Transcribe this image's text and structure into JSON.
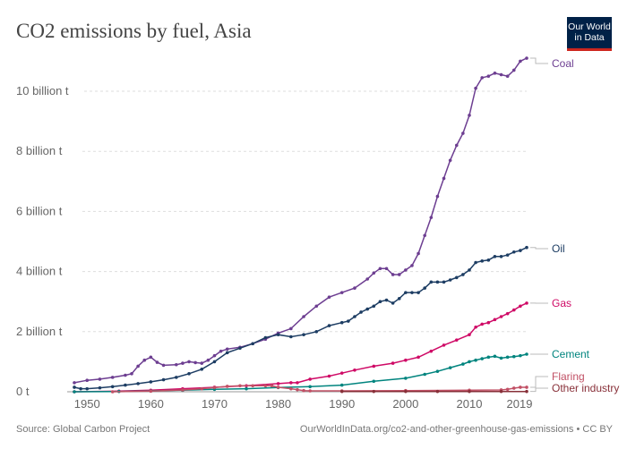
{
  "logo_text": "Our World in Data",
  "footer": {
    "source": "Source: Global Carbon Project",
    "url": "OurWorldInData.org/co2-and-other-greenhouse-gas-emissions • CC BY"
  },
  "chart_data": {
    "type": "line",
    "title": "CO2 emissions by fuel, Asia",
    "xlabel": "",
    "ylabel": "",
    "xlim": [
      1948,
      2019
    ],
    "ylim": [
      0,
      11.1
    ],
    "grid": true,
    "legend": "right (inline labels at line ends)",
    "x_ticks": [
      1950,
      1960,
      1970,
      1980,
      1990,
      2000,
      2010,
      2019
    ],
    "y_ticks": [
      {
        "value": 0,
        "label": "0 t"
      },
      {
        "value": 2,
        "label": "2 billion t"
      },
      {
        "value": 4,
        "label": "4 billion t"
      },
      {
        "value": 6,
        "label": "6 billion t"
      },
      {
        "value": 8,
        "label": "8 billion t"
      },
      {
        "value": 10,
        "label": "10 billion t"
      }
    ],
    "units": "billion t",
    "series": [
      {
        "name": "Coal",
        "color": "#6d3e91",
        "x": [
          1948,
          1950,
          1952,
          1954,
          1956,
          1957,
          1958,
          1959,
          1960,
          1961,
          1962,
          1964,
          1965,
          1966,
          1967,
          1968,
          1969,
          1970,
          1971,
          1972,
          1974,
          1976,
          1978,
          1980,
          1982,
          1984,
          1986,
          1988,
          1990,
          1992,
          1994,
          1995,
          1996,
          1997,
          1998,
          1999,
          2000,
          2001,
          2002,
          2003,
          2004,
          2005,
          2006,
          2007,
          2008,
          2009,
          2010,
          2011,
          2012,
          2013,
          2014,
          2015,
          2016,
          2017,
          2018,
          2019
        ],
        "y": [
          0.3,
          0.38,
          0.42,
          0.48,
          0.55,
          0.6,
          0.85,
          1.05,
          1.15,
          0.98,
          0.88,
          0.9,
          0.95,
          1.0,
          0.97,
          0.95,
          1.05,
          1.2,
          1.35,
          1.42,
          1.48,
          1.6,
          1.75,
          1.95,
          2.1,
          2.5,
          2.85,
          3.15,
          3.3,
          3.45,
          3.75,
          3.95,
          4.1,
          4.1,
          3.9,
          3.9,
          4.05,
          4.2,
          4.6,
          5.2,
          5.8,
          6.5,
          7.1,
          7.7,
          8.2,
          8.6,
          9.2,
          10.1,
          10.45,
          10.5,
          10.6,
          10.55,
          10.5,
          10.7,
          11.0,
          11.1
        ]
      },
      {
        "name": "Oil",
        "color": "#1d3d63",
        "x": [
          1948,
          1949,
          1950,
          1952,
          1954,
          1956,
          1958,
          1960,
          1962,
          1964,
          1966,
          1968,
          1970,
          1972,
          1974,
          1976,
          1978,
          1980,
          1982,
          1984,
          1986,
          1988,
          1990,
          1991,
          1992,
          1993,
          1994,
          1995,
          1996,
          1997,
          1998,
          1999,
          2000,
          2001,
          2002,
          2003,
          2004,
          2005,
          2006,
          2007,
          2008,
          2009,
          2010,
          2011,
          2012,
          2013,
          2014,
          2015,
          2016,
          2017,
          2018,
          2019
        ],
        "y": [
          0.15,
          0.1,
          0.1,
          0.13,
          0.17,
          0.22,
          0.27,
          0.33,
          0.4,
          0.48,
          0.6,
          0.75,
          1.0,
          1.3,
          1.45,
          1.6,
          1.8,
          1.9,
          1.83,
          1.9,
          2.0,
          2.2,
          2.3,
          2.35,
          2.5,
          2.65,
          2.75,
          2.85,
          3.0,
          3.05,
          2.95,
          3.1,
          3.3,
          3.3,
          3.3,
          3.45,
          3.65,
          3.65,
          3.65,
          3.72,
          3.8,
          3.9,
          4.05,
          4.3,
          4.35,
          4.38,
          4.5,
          4.5,
          4.55,
          4.65,
          4.7,
          4.8
        ]
      },
      {
        "name": "Gas",
        "color": "#cf0a66",
        "x": [
          1948,
          1955,
          1960,
          1965,
          1970,
          1975,
          1980,
          1982,
          1983,
          1985,
          1988,
          1990,
          1992,
          1995,
          1998,
          2000,
          2002,
          2004,
          2006,
          2008,
          2010,
          2011,
          2012,
          2013,
          2014,
          2015,
          2016,
          2017,
          2018,
          2019
        ],
        "y": [
          0.0,
          0.02,
          0.05,
          0.1,
          0.15,
          0.2,
          0.27,
          0.3,
          0.3,
          0.42,
          0.52,
          0.62,
          0.72,
          0.85,
          0.95,
          1.05,
          1.15,
          1.35,
          1.55,
          1.72,
          1.9,
          2.15,
          2.25,
          2.3,
          2.4,
          2.5,
          2.6,
          2.72,
          2.85,
          2.95
        ]
      },
      {
        "name": "Cement",
        "color": "#00847e",
        "x": [
          1948,
          1955,
          1960,
          1965,
          1970,
          1975,
          1980,
          1985,
          1990,
          1995,
          2000,
          2003,
          2005,
          2007,
          2009,
          2010,
          2011,
          2012,
          2013,
          2014,
          2015,
          2016,
          2017,
          2018,
          2019
        ],
        "y": [
          0.0,
          0.01,
          0.03,
          0.05,
          0.08,
          0.1,
          0.14,
          0.17,
          0.22,
          0.35,
          0.45,
          0.58,
          0.68,
          0.8,
          0.92,
          1.0,
          1.05,
          1.1,
          1.15,
          1.18,
          1.12,
          1.15,
          1.17,
          1.2,
          1.25
        ]
      },
      {
        "name": "Flaring",
        "color": "#c15065",
        "x": [
          1954,
          1960,
          1965,
          1968,
          1970,
          1972,
          1974,
          1976,
          1978,
          1979,
          1980,
          1982,
          1983,
          1984,
          1985,
          1990,
          2000,
          2010,
          2015,
          2016,
          2017,
          2018,
          2019
        ],
        "y": [
          0.0,
          0.02,
          0.06,
          0.1,
          0.14,
          0.18,
          0.2,
          0.2,
          0.2,
          0.2,
          0.15,
          0.1,
          0.07,
          0.04,
          0.03,
          0.03,
          0.04,
          0.05,
          0.06,
          0.08,
          0.12,
          0.15,
          0.15
        ]
      },
      {
        "name": "Other industry",
        "color": "#883039",
        "x": [
          1990,
          1995,
          2000,
          2005,
          2010,
          2015,
          2019
        ],
        "y": [
          0.01,
          0.01,
          0.01,
          0.01,
          0.01,
          0.01,
          0.01
        ]
      }
    ]
  }
}
